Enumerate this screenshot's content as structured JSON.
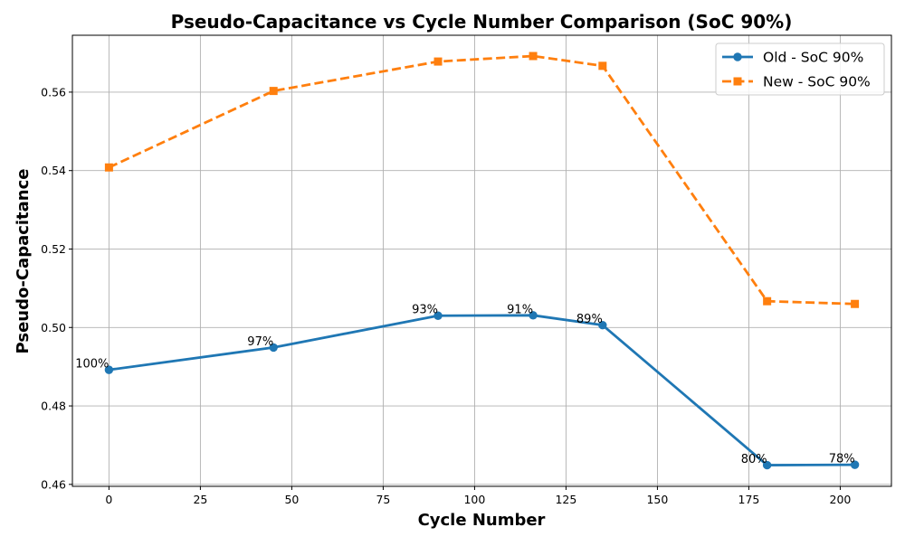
{
  "chart_data": {
    "type": "line",
    "title": "Pseudo-Capacitance vs Cycle Number Comparison (SoC 90%)",
    "xlabel": "Cycle Number",
    "ylabel": "Pseudo-Capacitance",
    "xlim": [
      -10,
      214
    ],
    "ylim": [
      0.4595,
      0.5745
    ],
    "xticks": [
      0,
      25,
      50,
      75,
      100,
      125,
      150,
      175,
      200
    ],
    "yticks": [
      0.46,
      0.48,
      0.5,
      0.52,
      0.54,
      0.56
    ],
    "xtick_labels": [
      "0",
      "25",
      "50",
      "75",
      "100",
      "125",
      "150",
      "175",
      "200"
    ],
    "ytick_labels": [
      "0.46",
      "0.48",
      "0.50",
      "0.52",
      "0.54",
      "0.56"
    ],
    "grid": true,
    "legend_position": "top-right",
    "series": [
      {
        "name": "Old - SoC 90%",
        "color": "#1f77b4",
        "line_style": "solid",
        "marker": "circle",
        "x": [
          0,
          45,
          90,
          116,
          135,
          180,
          204
        ],
        "y": [
          0.4892,
          0.4949,
          0.503,
          0.5031,
          0.5006,
          0.4649,
          0.465
        ],
        "point_labels": [
          "100%",
          "97%",
          "93%",
          "91%",
          "89%",
          "80%",
          "78%"
        ]
      },
      {
        "name": "New - SoC 90%",
        "color": "#ff7f0e",
        "line_style": "dashed",
        "marker": "square",
        "x": [
          0,
          45,
          90,
          116,
          135,
          180,
          204
        ],
        "y": [
          0.5408,
          0.5603,
          0.5678,
          0.5692,
          0.5667,
          0.5067,
          0.506
        ],
        "point_labels": []
      }
    ]
  }
}
